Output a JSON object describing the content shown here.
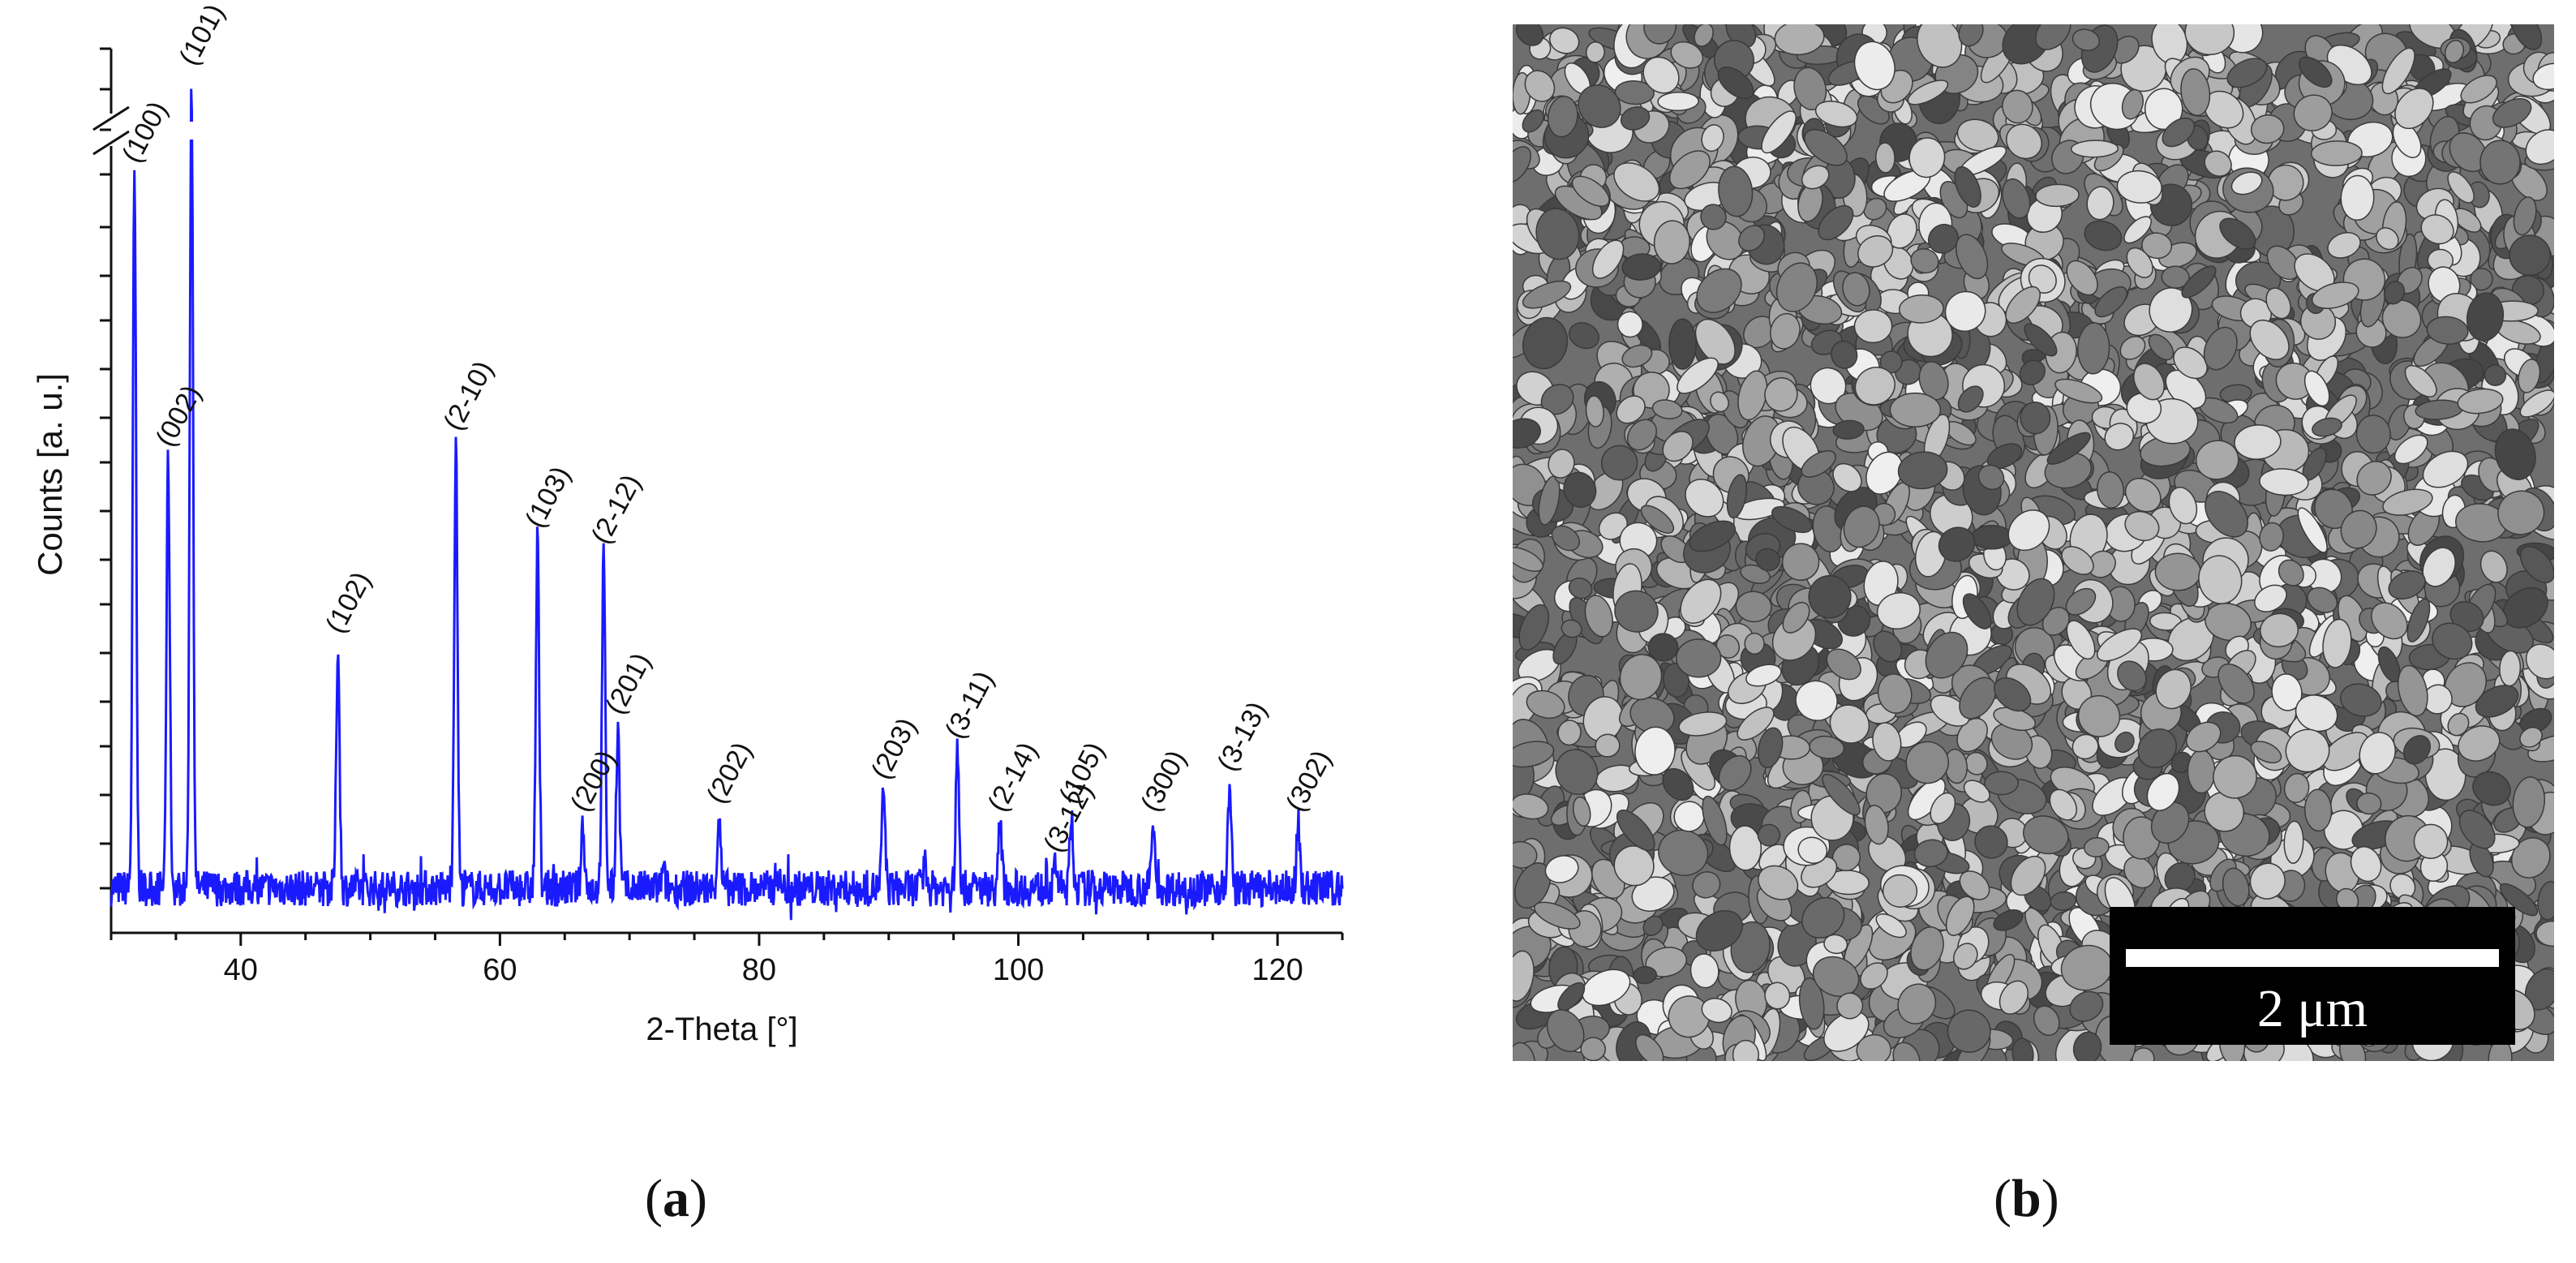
{
  "chart_data": {
    "type": "line",
    "xlabel": "2-Theta [°]",
    "ylabel": "Counts [a. u.]",
    "xlim": [
      30,
      125
    ],
    "x_ticks": [
      40,
      60,
      80,
      100,
      120
    ],
    "y_axis_break": true,
    "series": [
      {
        "color": "#1a1aff",
        "peaks": [
          {
            "x": 31.8,
            "y": 0.88,
            "label": "(100)"
          },
          {
            "x": 34.4,
            "y": 0.53,
            "label": "(002)"
          },
          {
            "x": 36.2,
            "y": 1.0,
            "label": "(101)"
          },
          {
            "x": 47.5,
            "y": 0.3,
            "label": "(102)"
          },
          {
            "x": 56.6,
            "y": 0.55,
            "label": "(2-10)"
          },
          {
            "x": 62.9,
            "y": 0.43,
            "label": "(103)"
          },
          {
            "x": 66.4,
            "y": 0.08,
            "label": "(200)"
          },
          {
            "x": 68.0,
            "y": 0.41,
            "label": "(2-12)"
          },
          {
            "x": 69.1,
            "y": 0.2,
            "label": "(201)"
          },
          {
            "x": 72.6,
            "y": 0.02,
            "label": ""
          },
          {
            "x": 76.9,
            "y": 0.09,
            "label": "(202)"
          },
          {
            "x": 81.4,
            "y": 0.02,
            "label": ""
          },
          {
            "x": 89.6,
            "y": 0.12,
            "label": "(203)"
          },
          {
            "x": 92.8,
            "y": 0.03,
            "label": ""
          },
          {
            "x": 95.3,
            "y": 0.17,
            "label": "(3-11)"
          },
          {
            "x": 98.6,
            "y": 0.08,
            "label": "(2-14)"
          },
          {
            "x": 102.9,
            "y": 0.03,
            "label": "(3-12)"
          },
          {
            "x": 104.1,
            "y": 0.09,
            "label": "(105)"
          },
          {
            "x": 110.4,
            "y": 0.08,
            "label": "(300)"
          },
          {
            "x": 116.3,
            "y": 0.13,
            "label": "(3-13)"
          },
          {
            "x": 121.6,
            "y": 0.08,
            "label": "(302)"
          }
        ]
      }
    ]
  },
  "sem": {
    "scale_bar_label": "2 μm"
  },
  "captions": {
    "a_open": "(",
    "a_letter": "a",
    "a_close": ")",
    "b_open": "(",
    "b_letter": "b",
    "b_close": ")"
  }
}
